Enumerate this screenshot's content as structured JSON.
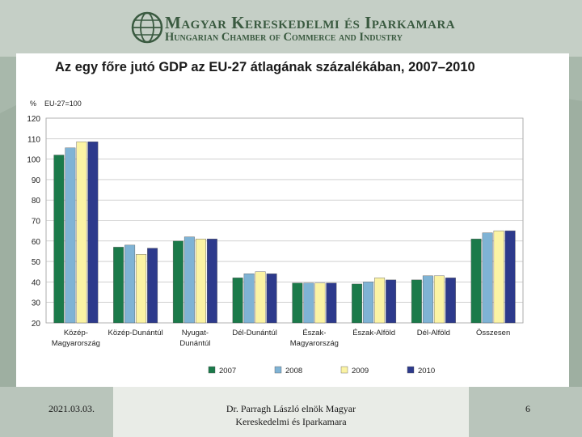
{
  "header": {
    "org_name_hu": "Magyar Kereskedelmi és Iparkamara",
    "org_name_en": "Hungarian Chamber of Commerce and Industry"
  },
  "chart_data": {
    "type": "bar",
    "title": "Az egy főre jutó GDP az EU-27 átlagának százalékában, 2007–2010",
    "ylabel": "%",
    "subtitle": "EU-27=100",
    "ylim": [
      20,
      120
    ],
    "yticks": [
      20,
      30,
      40,
      50,
      60,
      70,
      80,
      90,
      100,
      110,
      120
    ],
    "categories": [
      [
        "Közép-",
        "Magyarország"
      ],
      [
        "Közép-Dunántúl"
      ],
      [
        "Nyugat-",
        "Dunántúl"
      ],
      [
        "Dél-Dunántúl"
      ],
      [
        "Észak-",
        "Magyarország"
      ],
      [
        "Észak-Alföld"
      ],
      [
        "Dél-Alföld"
      ],
      [
        "Összesen"
      ]
    ],
    "series": [
      {
        "name": "2007",
        "color": "#1b7a4a",
        "values": [
          102,
          57,
          60,
          42,
          39.5,
          39,
          41,
          61
        ]
      },
      {
        "name": "2008",
        "color": "#7fb3d5",
        "values": [
          105.5,
          58,
          62,
          44,
          39.5,
          40,
          43,
          64
        ]
      },
      {
        "name": "2009",
        "color": "#fbf3a4",
        "values": [
          108.5,
          53.5,
          61,
          45,
          39.5,
          42,
          43,
          65
        ]
      },
      {
        "name": "2010",
        "color": "#2d3a8c",
        "values": [
          108.5,
          56.5,
          61,
          44,
          39.5,
          41,
          42,
          65
        ]
      }
    ],
    "legend": "bottom",
    "grid": true
  },
  "footer": {
    "date": "2021.03.03.",
    "author_line1": "Dr. Parragh László elnök Magyar",
    "author_line2": "Kereskedelmi és Iparkamara",
    "page": "6"
  }
}
